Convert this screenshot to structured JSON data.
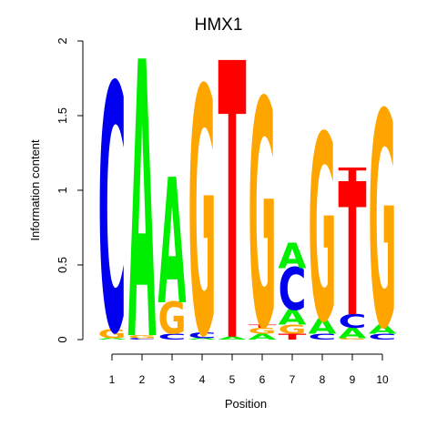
{
  "chart_data": {
    "type": "sequence-logo",
    "title": "HMX1",
    "xlabel": "Position",
    "ylabel": "Information content",
    "ylim": [
      0,
      2
    ],
    "yticks": [
      {
        "value": 0,
        "label": "0"
      },
      {
        "value": 0.5,
        "label": "0.5"
      },
      {
        "value": 1,
        "label": "1"
      },
      {
        "value": 1.5,
        "label": "1.5"
      },
      {
        "value": 2,
        "label": "2"
      }
    ],
    "positions": [
      "1",
      "2",
      "3",
      "4",
      "5",
      "6",
      "7",
      "8",
      "9",
      "10"
    ],
    "colors": {
      "A": "#00ee00",
      "C": "#0000ee",
      "G": "#ffa500",
      "T": "#ff0000"
    },
    "stacks": [
      [
        {
          "letter": "A",
          "height": 0.01
        },
        {
          "letter": "G",
          "height": 0.06
        },
        {
          "letter": "C",
          "height": 1.63
        }
      ],
      [
        {
          "letter": "C",
          "height": 0.01
        },
        {
          "letter": "G",
          "height": 0.02
        },
        {
          "letter": "A",
          "height": 1.83
        }
      ],
      [
        {
          "letter": "C",
          "height": 0.04
        },
        {
          "letter": "G",
          "height": 0.21
        },
        {
          "letter": "A",
          "height": 0.83
        }
      ],
      [
        {
          "letter": "A",
          "height": 0.01
        },
        {
          "letter": "C",
          "height": 0.04
        },
        {
          "letter": "G",
          "height": 1.63
        }
      ],
      [
        {
          "letter": "A",
          "height": 0.02
        },
        {
          "letter": "T",
          "height": 1.83
        }
      ],
      [
        {
          "letter": "A",
          "height": 0.04
        },
        {
          "letter": "G",
          "height": 0.04
        },
        {
          "letter": "T",
          "height": 0.02
        },
        {
          "letter": "G",
          "height": 1.5
        }
      ],
      [
        {
          "letter": "T",
          "height": 0.04
        },
        {
          "letter": "G",
          "height": 0.06
        },
        {
          "letter": "A",
          "height": 0.1
        },
        {
          "letter": "C",
          "height": 0.28
        },
        {
          "letter": "A",
          "height": 0.17
        }
      ],
      [
        {
          "letter": "C",
          "height": 0.04
        },
        {
          "letter": "A",
          "height": 0.1
        },
        {
          "letter": "G",
          "height": 1.23
        }
      ],
      [
        {
          "letter": "G",
          "height": 0.01
        },
        {
          "letter": "A",
          "height": 0.07
        },
        {
          "letter": "C",
          "height": 0.09
        },
        {
          "letter": "T",
          "height": 0.88
        },
        {
          "letter": "T",
          "height": 0.1
        }
      ],
      [
        {
          "letter": "C",
          "height": 0.04
        },
        {
          "letter": "A",
          "height": 0.06
        },
        {
          "letter": "G",
          "height": 1.42
        }
      ]
    ]
  }
}
